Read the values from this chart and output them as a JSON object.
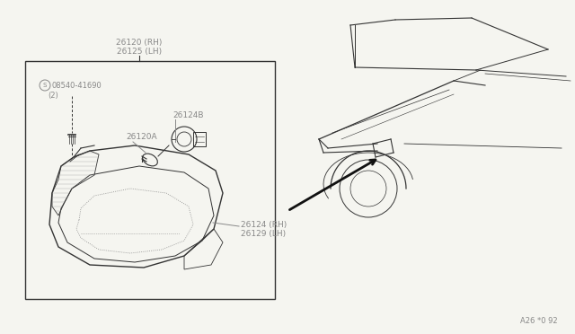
{
  "bg_color": "#f5f5f0",
  "line_color": "#333333",
  "gray_color": "#888888",
  "title_label_1": "26120 (RH)",
  "title_label_2": "26125 (LH)",
  "label_screw_circle": "S",
  "label_screw_text": "08540-41690",
  "label_screw_qty": "(2)",
  "label_26124B": "26124B",
  "label_26120A": "26120A",
  "label_26124": "26124 (RH)",
  "label_26129": "26129 (LH)",
  "footnote": "A26 *0 92"
}
